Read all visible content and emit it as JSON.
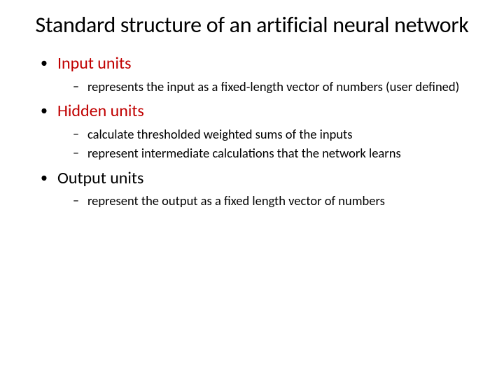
{
  "title": "Standard structure of an artificial neural network",
  "sections": [
    {
      "heading": "Input units",
      "heading_color": "#c00000",
      "subitems": [
        "represents the input as a fixed-length vector of numbers (user defined)"
      ]
    },
    {
      "heading": "Hidden units",
      "heading_color": "#c00000",
      "subitems": [
        "calculate thresholded weighted sums of the inputs",
        "represent intermediate calculations that the network learns"
      ]
    },
    {
      "heading": "Output units",
      "heading_color": "#000000",
      "subitems": [
        "represent the output as a fixed length vector of numbers"
      ]
    }
  ],
  "styling": {
    "background_color": "#ffffff",
    "title_fontsize": 32,
    "heading_fontsize": 24,
    "subitem_fontsize": 18.5,
    "red_color": "#c00000",
    "black_color": "#000000",
    "font_family": "Calibri"
  }
}
